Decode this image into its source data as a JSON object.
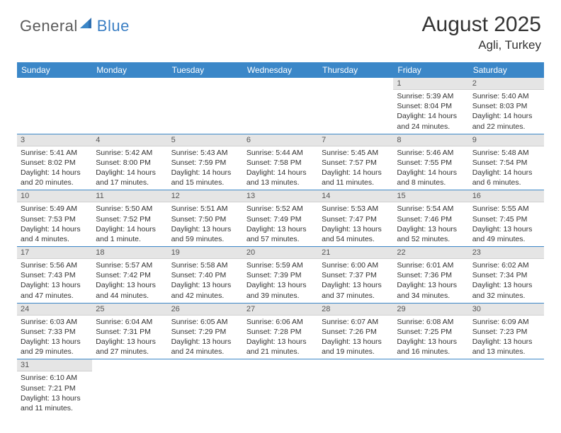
{
  "brand": {
    "part1": "General",
    "part2": "Blue"
  },
  "title": "August 2025",
  "location": "Agli, Turkey",
  "colors": {
    "header_bg": "#3b87c8",
    "header_text": "#ffffff",
    "daynum_bg": "#e5e5e5",
    "row_border": "#3b87c8",
    "brand_gray": "#5a5a5a",
    "brand_blue": "#3b7fc4"
  },
  "day_headers": [
    "Sunday",
    "Monday",
    "Tuesday",
    "Wednesday",
    "Thursday",
    "Friday",
    "Saturday"
  ],
  "weeks": [
    [
      {
        "empty": true
      },
      {
        "empty": true
      },
      {
        "empty": true
      },
      {
        "empty": true
      },
      {
        "empty": true
      },
      {
        "n": "1",
        "sunrise": "5:39 AM",
        "sunset": "8:04 PM",
        "daylight": "14 hours and 24 minutes."
      },
      {
        "n": "2",
        "sunrise": "5:40 AM",
        "sunset": "8:03 PM",
        "daylight": "14 hours and 22 minutes."
      }
    ],
    [
      {
        "n": "3",
        "sunrise": "5:41 AM",
        "sunset": "8:02 PM",
        "daylight": "14 hours and 20 minutes."
      },
      {
        "n": "4",
        "sunrise": "5:42 AM",
        "sunset": "8:00 PM",
        "daylight": "14 hours and 17 minutes."
      },
      {
        "n": "5",
        "sunrise": "5:43 AM",
        "sunset": "7:59 PM",
        "daylight": "14 hours and 15 minutes."
      },
      {
        "n": "6",
        "sunrise": "5:44 AM",
        "sunset": "7:58 PM",
        "daylight": "14 hours and 13 minutes."
      },
      {
        "n": "7",
        "sunrise": "5:45 AM",
        "sunset": "7:57 PM",
        "daylight": "14 hours and 11 minutes."
      },
      {
        "n": "8",
        "sunrise": "5:46 AM",
        "sunset": "7:55 PM",
        "daylight": "14 hours and 8 minutes."
      },
      {
        "n": "9",
        "sunrise": "5:48 AM",
        "sunset": "7:54 PM",
        "daylight": "14 hours and 6 minutes."
      }
    ],
    [
      {
        "n": "10",
        "sunrise": "5:49 AM",
        "sunset": "7:53 PM",
        "daylight": "14 hours and 4 minutes."
      },
      {
        "n": "11",
        "sunrise": "5:50 AM",
        "sunset": "7:52 PM",
        "daylight": "14 hours and 1 minute."
      },
      {
        "n": "12",
        "sunrise": "5:51 AM",
        "sunset": "7:50 PM",
        "daylight": "13 hours and 59 minutes."
      },
      {
        "n": "13",
        "sunrise": "5:52 AM",
        "sunset": "7:49 PM",
        "daylight": "13 hours and 57 minutes."
      },
      {
        "n": "14",
        "sunrise": "5:53 AM",
        "sunset": "7:47 PM",
        "daylight": "13 hours and 54 minutes."
      },
      {
        "n": "15",
        "sunrise": "5:54 AM",
        "sunset": "7:46 PM",
        "daylight": "13 hours and 52 minutes."
      },
      {
        "n": "16",
        "sunrise": "5:55 AM",
        "sunset": "7:45 PM",
        "daylight": "13 hours and 49 minutes."
      }
    ],
    [
      {
        "n": "17",
        "sunrise": "5:56 AM",
        "sunset": "7:43 PM",
        "daylight": "13 hours and 47 minutes."
      },
      {
        "n": "18",
        "sunrise": "5:57 AM",
        "sunset": "7:42 PM",
        "daylight": "13 hours and 44 minutes."
      },
      {
        "n": "19",
        "sunrise": "5:58 AM",
        "sunset": "7:40 PM",
        "daylight": "13 hours and 42 minutes."
      },
      {
        "n": "20",
        "sunrise": "5:59 AM",
        "sunset": "7:39 PM",
        "daylight": "13 hours and 39 minutes."
      },
      {
        "n": "21",
        "sunrise": "6:00 AM",
        "sunset": "7:37 PM",
        "daylight": "13 hours and 37 minutes."
      },
      {
        "n": "22",
        "sunrise": "6:01 AM",
        "sunset": "7:36 PM",
        "daylight": "13 hours and 34 minutes."
      },
      {
        "n": "23",
        "sunrise": "6:02 AM",
        "sunset": "7:34 PM",
        "daylight": "13 hours and 32 minutes."
      }
    ],
    [
      {
        "n": "24",
        "sunrise": "6:03 AM",
        "sunset": "7:33 PM",
        "daylight": "13 hours and 29 minutes."
      },
      {
        "n": "25",
        "sunrise": "6:04 AM",
        "sunset": "7:31 PM",
        "daylight": "13 hours and 27 minutes."
      },
      {
        "n": "26",
        "sunrise": "6:05 AM",
        "sunset": "7:29 PM",
        "daylight": "13 hours and 24 minutes."
      },
      {
        "n": "27",
        "sunrise": "6:06 AM",
        "sunset": "7:28 PM",
        "daylight": "13 hours and 21 minutes."
      },
      {
        "n": "28",
        "sunrise": "6:07 AM",
        "sunset": "7:26 PM",
        "daylight": "13 hours and 19 minutes."
      },
      {
        "n": "29",
        "sunrise": "6:08 AM",
        "sunset": "7:25 PM",
        "daylight": "13 hours and 16 minutes."
      },
      {
        "n": "30",
        "sunrise": "6:09 AM",
        "sunset": "7:23 PM",
        "daylight": "13 hours and 13 minutes."
      }
    ],
    [
      {
        "n": "31",
        "sunrise": "6:10 AM",
        "sunset": "7:21 PM",
        "daylight": "13 hours and 11 minutes."
      },
      {
        "empty": true
      },
      {
        "empty": true
      },
      {
        "empty": true
      },
      {
        "empty": true
      },
      {
        "empty": true
      },
      {
        "empty": true
      }
    ]
  ],
  "labels": {
    "sunrise": "Sunrise:",
    "sunset": "Sunset:",
    "daylight": "Daylight:"
  }
}
